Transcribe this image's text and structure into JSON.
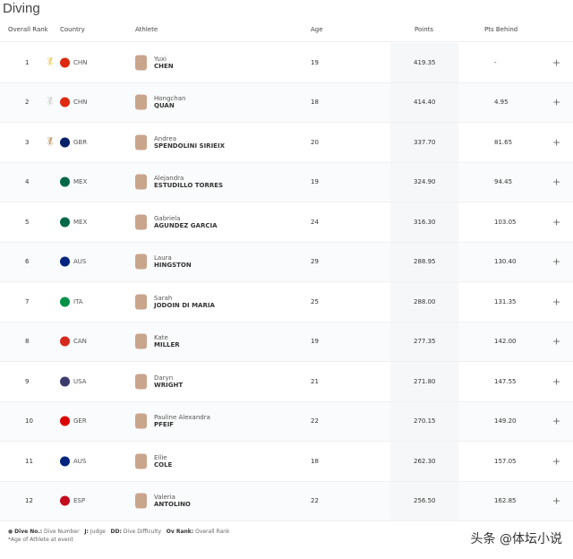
{
  "title": "Diving",
  "headers": {
    "rank": "Overall Rank",
    "country": "Country",
    "athlete": "Athlete",
    "age": "Age",
    "points": "Points",
    "behind": "Pts Behind"
  },
  "rows": [
    {
      "rank": "1",
      "medal": "gold",
      "country": "CHN",
      "flag": "#de2910",
      "first": "Yuxi",
      "last": "CHEN",
      "age": "19",
      "points": "419.35",
      "behind": "-"
    },
    {
      "rank": "2",
      "medal": "silver",
      "country": "CHN",
      "flag": "#de2910",
      "first": "Hongchan",
      "last": "QUAN",
      "age": "18",
      "points": "414.40",
      "behind": "4.95"
    },
    {
      "rank": "3",
      "medal": "bronze",
      "country": "GBR",
      "flag": "#012169",
      "first": "Andrea",
      "last": "SPENDOLINI SIRIEIX",
      "age": "20",
      "points": "337.70",
      "behind": "81.65"
    },
    {
      "rank": "4",
      "country": "MEX",
      "flag": "#006847",
      "first": "Alejandra",
      "last": "ESTUDILLO TORRES",
      "age": "19",
      "points": "324.90",
      "behind": "94.45"
    },
    {
      "rank": "5",
      "country": "MEX",
      "flag": "#006847",
      "first": "Gabriela",
      "last": "AGUNDEZ GARCIA",
      "age": "24",
      "points": "316.30",
      "behind": "103.05"
    },
    {
      "rank": "6",
      "country": "AUS",
      "flag": "#00247d",
      "first": "Laura",
      "last": "HINGSTON",
      "age": "29",
      "points": "288.95",
      "behind": "130.40"
    },
    {
      "rank": "7",
      "country": "ITA",
      "flag": "#009246",
      "first": "Sarah",
      "last": "JODOIN DI MARIA",
      "age": "25",
      "points": "288.00",
      "behind": "131.35"
    },
    {
      "rank": "8",
      "country": "CAN",
      "flag": "#d52b1e",
      "first": "Kate",
      "last": "MILLER",
      "age": "19",
      "points": "277.35",
      "behind": "142.00"
    },
    {
      "rank": "9",
      "country": "USA",
      "flag": "#3c3b6e",
      "first": "Daryn",
      "last": "WRIGHT",
      "age": "21",
      "points": "271.80",
      "behind": "147.55"
    },
    {
      "rank": "10",
      "country": "GER",
      "flag": "#dd0000",
      "first": "Pauline Alexandra",
      "last": "PFEIF",
      "age": "22",
      "points": "270.15",
      "behind": "149.20"
    },
    {
      "rank": "11",
      "country": "AUS",
      "flag": "#00247d",
      "first": "Ellie",
      "last": "COLE",
      "age": "18",
      "points": "262.30",
      "behind": "157.05"
    },
    {
      "rank": "12",
      "country": "ESP",
      "flag": "#c60b1e",
      "first": "Valeria",
      "last": "ANTOLINO",
      "age": "22",
      "points": "256.50",
      "behind": "162.85"
    }
  ],
  "footer": {
    "legend1_key": "Dive No.:",
    "legend1": "Dive Number",
    "legend2_key": "J:",
    "legend2": "Judge",
    "legend3_key": "DD:",
    "legend3": "Dive Difficulty",
    "legend4_key": "Ov Rank:",
    "legend4": "Overall Rank",
    "note": "*Age of Athlete at event"
  },
  "watermark": "头条 @体坛小说"
}
